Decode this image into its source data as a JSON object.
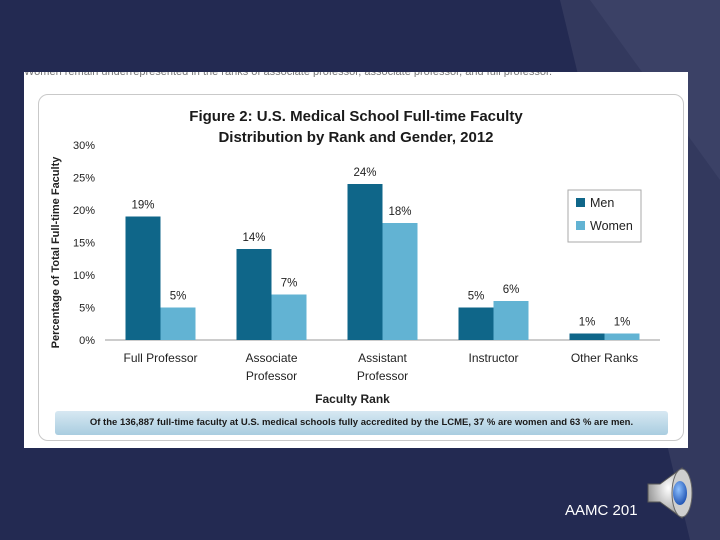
{
  "slide": {
    "top_text": "Women remain underrepresented in the ranks of associate professor, associate professor, and full professor.",
    "source_label": "AAMC 201",
    "footer_note": "Of the 136,887 full-time faculty at U.S. medical schools fully accredited by the LCME, 37 % are women and 63 % are men.",
    "colors": {
      "background": "#232a52",
      "men": "#0f6689",
      "women": "#62b3d3"
    },
    "speaker_icon": "speaker-icon"
  },
  "chart_data": {
    "type": "bar",
    "title_line1": "Figure 2: U.S. Medical School Full-time Faculty",
    "title_line2": "Distribution by Rank and Gender, 2012",
    "categories": [
      "Full Professor",
      "Associate Professor",
      "Assistant Professor",
      "Instructor",
      "Other Ranks"
    ],
    "category_lines": [
      [
        "Full Professor"
      ],
      [
        "Associate",
        "Professor"
      ],
      [
        "Assistant",
        "Professor"
      ],
      [
        "Instructor"
      ],
      [
        "Other Ranks"
      ]
    ],
    "series": [
      {
        "name": "Men",
        "values": [
          19,
          14,
          24,
          5,
          1
        ],
        "labels": [
          "19%",
          "14%",
          "24%",
          "5%",
          "1%"
        ]
      },
      {
        "name": "Women",
        "values": [
          5,
          7,
          18,
          6,
          1
        ],
        "labels": [
          "5%",
          "7%",
          "18%",
          "6%",
          "1%"
        ]
      }
    ],
    "ylim": [
      0,
      30
    ],
    "yticks": [
      0,
      5,
      10,
      15,
      20,
      25,
      30
    ],
    "ytick_labels": [
      "0%",
      "5%",
      "10%",
      "15%",
      "20%",
      "25%",
      "30%"
    ],
    "xlabel": "Faculty Rank",
    "ylabel": "Percentage of Total Full-time Faculty",
    "legend": "right"
  }
}
